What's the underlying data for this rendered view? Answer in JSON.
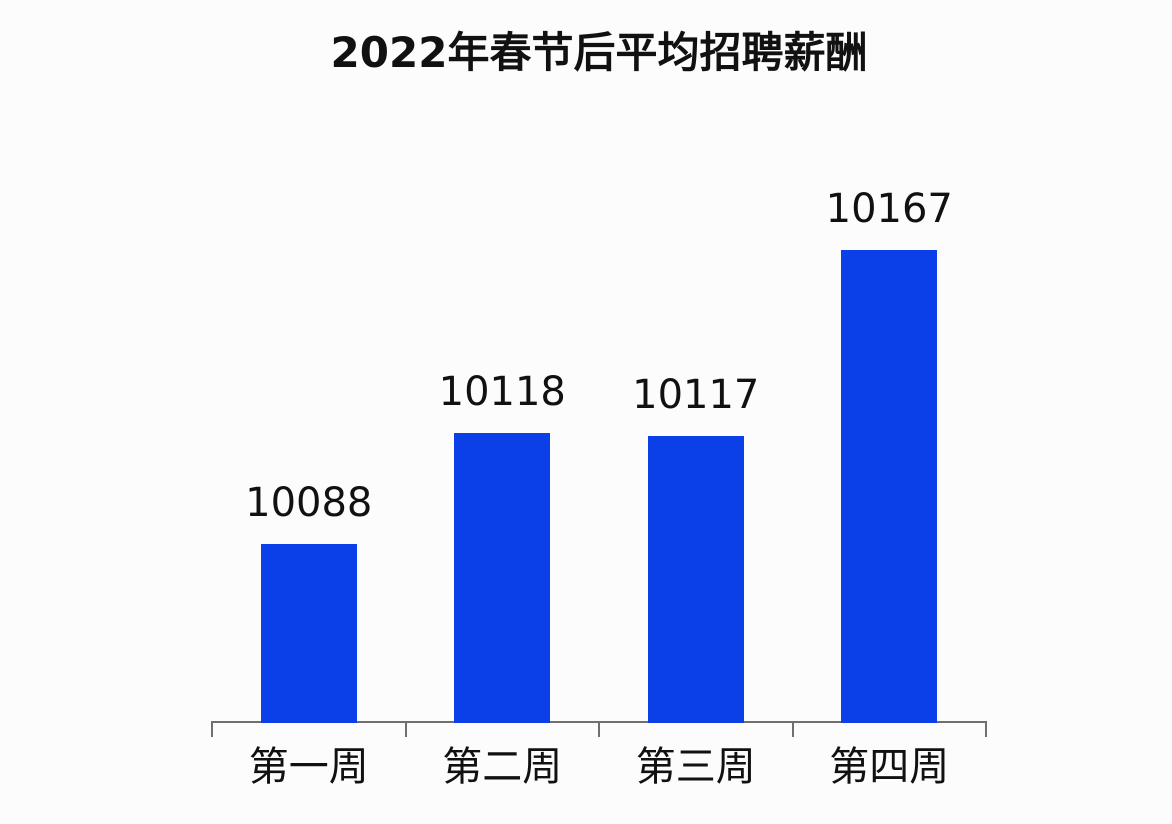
{
  "chart_data": {
    "type": "bar",
    "title": "2022年春节后平均招聘薪酬",
    "categories": [
      "第一周",
      "第二周",
      "第三周",
      "第四周"
    ],
    "values": [
      10088,
      10118,
      10117,
      10167
    ],
    "xlabel": "",
    "ylabel": "",
    "ylim": [
      10040,
      10180
    ],
    "grid": false,
    "legend": null,
    "data_labels_shown": true,
    "colors": {
      "bar": "#0b3fe8",
      "axis": "#6f6f6f",
      "text": "#111111",
      "background": "#fcfcfc"
    }
  }
}
